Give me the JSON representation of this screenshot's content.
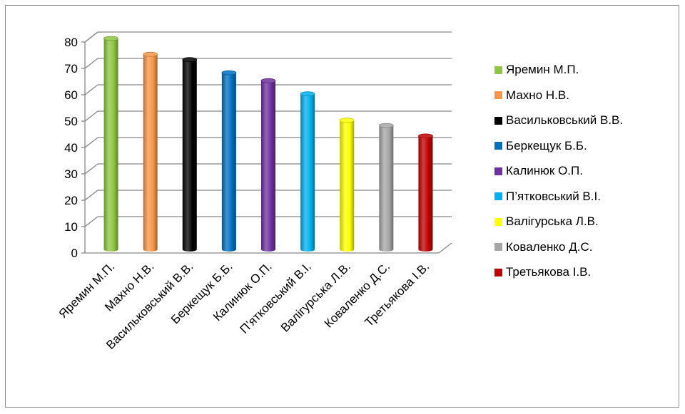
{
  "chart_data": {
    "type": "bar",
    "title": "",
    "xlabel": "",
    "ylabel": "",
    "ylim": [
      0,
      80
    ],
    "yticks": [
      "0",
      "10",
      "20",
      "30",
      "40",
      "50",
      "60",
      "70",
      "80"
    ],
    "grid": true,
    "legend_position": "right",
    "categories": [
      "Яремин М.П.",
      "Махно Н.В.",
      "Васильковський В.В.",
      "Беркещук Б.Б.",
      "Калинюк О.П.",
      "П’ятковський В.І.",
      "Валігурська Л.В.",
      "Коваленко Д.С.",
      "Третьякова І.В."
    ],
    "values": [
      80,
      74,
      72,
      67,
      64,
      59,
      49,
      47,
      43
    ],
    "colors": [
      "#8dc63f",
      "#f79646",
      "#000000",
      "#0070c0",
      "#7030a0",
      "#00b0f0",
      "#ffff00",
      "#a6a6a6",
      "#c00000"
    ]
  }
}
